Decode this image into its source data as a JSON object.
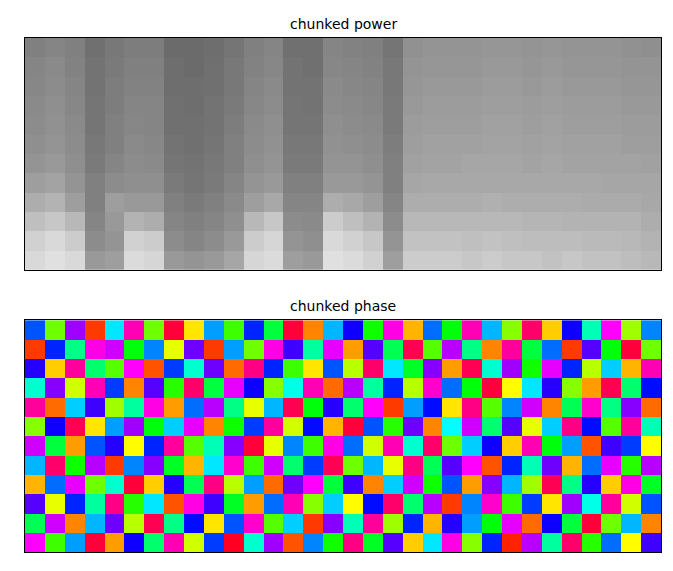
{
  "chart_data": [
    {
      "type": "heatmap",
      "title": "chunked power",
      "color": "gray",
      "tick_labels": false,
      "zlim": [
        0,
        1
      ],
      "z": [
        [
          0.85,
          0.88,
          0.85,
          0.6,
          0.62,
          0.86,
          0.84,
          0.6,
          0.58,
          0.6,
          0.65,
          0.84,
          0.86,
          0.62,
          0.6,
          0.88,
          0.86,
          0.82,
          0.62,
          0.8,
          0.8,
          0.8,
          0.78,
          0.8,
          0.78,
          0.78,
          0.76,
          0.78,
          0.76,
          0.76,
          0.74,
          0.72
        ],
        [
          0.82,
          0.85,
          0.8,
          0.55,
          0.58,
          0.82,
          0.8,
          0.55,
          0.52,
          0.55,
          0.6,
          0.8,
          0.84,
          0.58,
          0.56,
          0.85,
          0.82,
          0.78,
          0.58,
          0.76,
          0.76,
          0.76,
          0.75,
          0.76,
          0.75,
          0.74,
          0.74,
          0.74,
          0.73,
          0.73,
          0.72,
          0.7
        ],
        [
          0.75,
          0.78,
          0.72,
          0.52,
          0.6,
          0.7,
          0.68,
          0.52,
          0.5,
          0.52,
          0.56,
          0.72,
          0.78,
          0.55,
          0.54,
          0.8,
          0.75,
          0.7,
          0.55,
          0.72,
          0.72,
          0.72,
          0.72,
          0.72,
          0.72,
          0.71,
          0.71,
          0.7,
          0.7,
          0.7,
          0.7,
          0.68
        ],
        [
          0.68,
          0.7,
          0.62,
          0.5,
          0.62,
          0.6,
          0.6,
          0.5,
          0.48,
          0.5,
          0.54,
          0.62,
          0.66,
          0.52,
          0.52,
          0.68,
          0.66,
          0.62,
          0.52,
          0.68,
          0.68,
          0.68,
          0.68,
          0.69,
          0.68,
          0.68,
          0.68,
          0.68,
          0.67,
          0.67,
          0.67,
          0.66
        ],
        [
          0.62,
          0.64,
          0.58,
          0.5,
          0.55,
          0.56,
          0.56,
          0.48,
          0.46,
          0.48,
          0.52,
          0.58,
          0.6,
          0.5,
          0.5,
          0.6,
          0.6,
          0.58,
          0.5,
          0.65,
          0.66,
          0.66,
          0.66,
          0.66,
          0.66,
          0.66,
          0.66,
          0.66,
          0.66,
          0.65,
          0.65,
          0.65
        ],
        [
          0.58,
          0.6,
          0.56,
          0.48,
          0.52,
          0.55,
          0.54,
          0.46,
          0.45,
          0.47,
          0.5,
          0.56,
          0.58,
          0.48,
          0.48,
          0.58,
          0.58,
          0.56,
          0.5,
          0.63,
          0.64,
          0.64,
          0.65,
          0.65,
          0.65,
          0.64,
          0.65,
          0.64,
          0.64,
          0.64,
          0.64,
          0.63
        ],
        [
          0.56,
          0.58,
          0.55,
          0.47,
          0.5,
          0.54,
          0.53,
          0.45,
          0.44,
          0.46,
          0.5,
          0.55,
          0.57,
          0.47,
          0.47,
          0.57,
          0.56,
          0.55,
          0.49,
          0.62,
          0.63,
          0.63,
          0.63,
          0.64,
          0.64,
          0.63,
          0.64,
          0.63,
          0.63,
          0.63,
          0.62,
          0.62
        ],
        [
          0.55,
          0.57,
          0.54,
          0.46,
          0.5,
          0.53,
          0.52,
          0.44,
          0.44,
          0.45,
          0.49,
          0.54,
          0.56,
          0.46,
          0.46,
          0.56,
          0.55,
          0.54,
          0.48,
          0.61,
          0.62,
          0.62,
          0.62,
          0.63,
          0.63,
          0.62,
          0.63,
          0.62,
          0.62,
          0.62,
          0.61,
          0.61
        ],
        [
          0.54,
          0.56,
          0.53,
          0.46,
          0.49,
          0.52,
          0.52,
          0.44,
          0.43,
          0.45,
          0.48,
          0.53,
          0.55,
          0.46,
          0.45,
          0.55,
          0.54,
          0.53,
          0.48,
          0.6,
          0.61,
          0.61,
          0.61,
          0.62,
          0.62,
          0.61,
          0.62,
          0.61,
          0.61,
          0.61,
          0.6,
          0.6
        ],
        [
          0.53,
          0.55,
          0.52,
          0.45,
          0.49,
          0.51,
          0.51,
          0.43,
          0.43,
          0.44,
          0.47,
          0.52,
          0.54,
          0.45,
          0.45,
          0.54,
          0.53,
          0.52,
          0.47,
          0.59,
          0.6,
          0.6,
          0.6,
          0.61,
          0.61,
          0.6,
          0.61,
          0.6,
          0.6,
          0.6,
          0.59,
          0.59
        ],
        [
          0.52,
          0.54,
          0.51,
          0.45,
          0.48,
          0.5,
          0.5,
          0.43,
          0.42,
          0.44,
          0.47,
          0.51,
          0.53,
          0.45,
          0.44,
          0.53,
          0.52,
          0.51,
          0.47,
          0.58,
          0.59,
          0.59,
          0.59,
          0.6,
          0.6,
          0.59,
          0.6,
          0.59,
          0.59,
          0.59,
          0.58,
          0.58
        ],
        [
          0.5,
          0.52,
          0.5,
          0.44,
          0.47,
          0.49,
          0.49,
          0.42,
          0.42,
          0.43,
          0.46,
          0.5,
          0.52,
          0.44,
          0.44,
          0.52,
          0.51,
          0.5,
          0.46,
          0.57,
          0.58,
          0.58,
          0.58,
          0.59,
          0.59,
          0.58,
          0.59,
          0.58,
          0.58,
          0.58,
          0.57,
          0.56
        ]
      ]
    },
    {
      "type": "heatmap",
      "title": "chunked phase",
      "color": "hsv",
      "tick_labels": false,
      "zlim": [
        -3.14,
        3.14
      ],
      "z": [
        [
          2.1,
          -1.3,
          0.4,
          2.9,
          -2.5,
          1.1,
          -0.6,
          2.4,
          -1.9,
          0.8,
          3.0,
          -0.2,
          1.7,
          -2.8,
          0.5,
          -1.1,
          2.6,
          -0.9,
          1.4,
          -2.3,
          0.1,
          2.2,
          -1.6,
          0.9,
          -3.0,
          1.8,
          -0.4,
          2.7,
          -1.2,
          0.6,
          -2.1,
          1.3
        ],
        [
          -0.7,
          1.9,
          -2.6,
          0.3,
          1.5,
          -1.8,
          2.8,
          -0.5,
          1.0,
          -2.2,
          0.7,
          2.3,
          -1.4,
          0.2,
          -2.9,
          1.6,
          -0.3,
          2.5,
          -1.7,
          0.9,
          -2.4,
          1.2,
          0.4,
          -1.0,
          2.0,
          -2.7,
          1.1,
          -0.8,
          2.9,
          -1.5,
          0.3,
          -2.6
        ],
        [
          1.4,
          -2.0,
          0.9,
          -0.4,
          2.6,
          -1.2,
          0.1,
          -2.8,
          2.2,
          1.3,
          -0.9,
          -2.5,
          0.6,
          2.4,
          -1.6,
          0.2,
          -2.1,
          1.0,
          2.7,
          -0.6,
          1.8,
          -2.9,
          0.5,
          2.3,
          -1.3,
          0.8,
          -2.2,
          1.7,
          -0.1,
          2.5,
          -1.9,
          0.7
        ],
        [
          -2.4,
          0.6,
          2.0,
          -1.5,
          -0.2,
          2.9,
          -2.3,
          1.2,
          -0.7,
          2.6,
          -1.8,
          0.4,
          -2.7,
          1.5,
          2.1,
          -0.8,
          1.3,
          -2.6,
          0.2,
          1.9,
          -1.1,
          0.7,
          -2.5,
          1.6,
          0.3,
          -1.7,
          2.8,
          -0.5,
          1.2,
          -2.3,
          2.2,
          -0.9
        ],
        [
          0.3,
          2.7,
          -1.1,
          1.8,
          -2.9,
          0.5,
          1.6,
          -0.9,
          -2.4,
          0.1,
          2.3,
          -1.3,
          1.9,
          -0.6,
          0.8,
          2.8,
          -1.5,
          0.3,
          -2.0,
          2.6,
          -0.7,
          1.4,
          2.1,
          -2.8,
          0.9,
          -0.3,
          1.5,
          -2.4,
          0.6,
          2.0,
          -1.2,
          1.8
        ],
        [
          1.9,
          -0.8,
          -2.5,
          0.7,
          1.2,
          -2.1,
          0.9,
          2.5,
          -1.4,
          -0.3,
          1.6,
          2.9,
          -2.0,
          0.5,
          -1.3,
          2.2,
          0.6,
          -1.9,
          2.4,
          -0.2,
          2.7,
          -1.5,
          0.2,
          1.1,
          -2.3,
          2.4,
          -1.0,
          0.4,
          -2.8,
          1.3,
          0.8,
          -2.1
        ],
        [
          -1.6,
          1.1,
          2.8,
          -2.2,
          0.4,
          1.7,
          -1.0,
          0.2,
          2.0,
          -2.6,
          -1.1,
          0.8,
          2.5,
          -1.9,
          1.0,
          -2.4,
          2.9,
          0.7,
          -1.2,
          1.5,
          -2.6,
          0.0,
          1.9,
          -0.6,
          1.4,
          -2.0,
          0.2,
          2.6,
          1.0,
          -1.4,
          2.5,
          -0.3
        ],
        [
          2.5,
          -2.7,
          0.2,
          1.3,
          -1.7,
          -0.4,
          2.2,
          -2.5,
          0.6,
          1.8,
          -0.5,
          -2.0,
          0.3,
          2.8,
          -1.0,
          1.2,
          -0.6,
          2.1,
          -2.9,
          0.4,
          1.0,
          -2.2,
          2.6,
          -1.4,
          0.5,
          1.9,
          -2.6,
          -0.7,
          2.3,
          -0.5,
          1.6,
          -2.7
        ],
        [
          -0.2,
          1.6,
          -1.9,
          2.4,
          0.8,
          -2.6,
          1.4,
          -1.2,
          2.7,
          -0.8,
          2.0,
          1.1,
          -1.6,
          -0.1,
          2.4,
          -2.7,
          1.8,
          -0.4,
          0.9,
          -1.8,
          2.3,
          0.6,
          -1.0,
          2.9,
          -2.1,
          0.1,
          1.2,
          -1.6,
          -2.5,
          2.8,
          -0.6,
          1.0
        ],
        [
          1.2,
          -2.3,
          2.5,
          -0.6,
          -1.4,
          2.1,
          -2.8,
          0.8,
          -0.2,
          1.5,
          -2.7,
          2.6,
          0.9,
          -1.3,
          -2.2,
          0.7,
          -1.8,
          2.7,
          0.1,
          -0.9,
          1.6,
          -2.5,
          2.8,
          -0.2,
          1.7,
          -1.1,
          2.0,
          0.9,
          -1.8,
          0.2,
          -2.4,
          2.4
        ],
        [
          -2.9,
          0.9,
          -0.5,
          2.2,
          1.9,
          -1.0,
          0.5,
          -2.0,
          1.5,
          -2.9,
          0.4,
          -1.5,
          2.2,
          1.3,
          -0.4,
          2.0,
          -2.5,
          1.4,
          -0.7,
          2.8,
          -1.4,
          1.8,
          -0.5,
          -2.6,
          2.5,
          -0.8,
          0.6,
          -2.9,
          1.4,
          -1.0,
          2.9,
          -1.5
        ],
        [
          0.7,
          -1.5,
          1.7,
          -2.9,
          0.1,
          2.4,
          -1.5,
          2.9,
          -2.2,
          0.4,
          -1.3,
          0.9,
          -0.8,
          2.9,
          -2.6,
          0.3,
          1.1,
          -1.1,
          2.2,
          -2.4,
          0.6,
          -1.0,
          2.4,
          0.3,
          -1.6,
          2.7,
          -2.3,
          1.1,
          -0.3,
          2.1,
          -1.7,
          0.5
        ]
      ]
    }
  ]
}
